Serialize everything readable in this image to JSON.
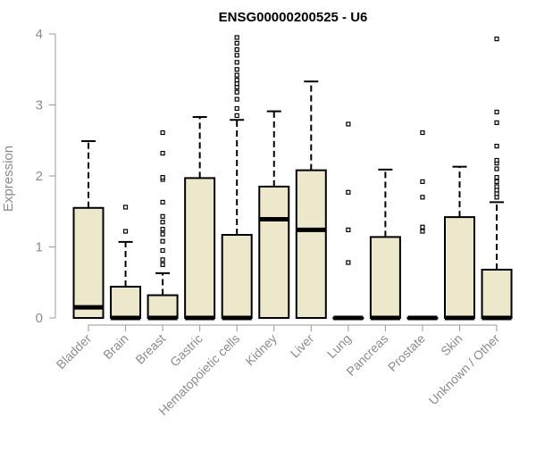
{
  "chart_data": {
    "type": "boxplot",
    "title": "ENSG00000200525 - U6",
    "xlabel": "",
    "ylabel": "Expression",
    "ylim": [
      0,
      4
    ],
    "yticks": [
      "0",
      "1",
      "2",
      "3",
      "4"
    ],
    "grid": false,
    "legend": "none",
    "colors": {
      "box_fill": "#ede7cc",
      "box_stroke": "#000000",
      "axis": "#999999",
      "label": "#8c8c8c"
    },
    "categories": [
      "Bladder",
      "Brain",
      "Breast",
      "Gastric",
      "Hematopoietic cells",
      "Kidney",
      "Liver",
      "Lung",
      "Pancreas",
      "Prostate",
      "Skin",
      "Unknown / Other"
    ],
    "boxes": [
      {
        "q1": 0.0,
        "median": 0.15,
        "q3": 1.55,
        "whisker_low": 0.0,
        "whisker_high": 2.49,
        "outliers": []
      },
      {
        "q1": 0.0,
        "median": 0.0,
        "q3": 0.44,
        "whisker_low": 0.0,
        "whisker_high": 1.07,
        "outliers": [
          1.22,
          1.56
        ]
      },
      {
        "q1": 0.0,
        "median": 0.0,
        "q3": 0.32,
        "whisker_low": 0.0,
        "whisker_high": 0.63,
        "outliers": [
          0.75,
          0.82,
          0.95,
          1.08,
          1.18,
          1.25,
          1.35,
          1.43,
          1.63,
          1.95,
          1.98,
          2.32,
          2.61
        ]
      },
      {
        "q1": 0.0,
        "median": 0.0,
        "q3": 1.97,
        "whisker_low": 0.0,
        "whisker_high": 2.83,
        "outliers": []
      },
      {
        "q1": 0.0,
        "median": 0.0,
        "q3": 1.17,
        "whisker_low": 0.0,
        "whisker_high": 2.79,
        "outliers": [
          2.85,
          2.95,
          3.08,
          3.18,
          3.25,
          3.3,
          3.35,
          3.42,
          3.5,
          3.6,
          3.7,
          3.78,
          3.87,
          3.95
        ]
      },
      {
        "q1": 0.0,
        "median": 1.39,
        "q3": 1.85,
        "whisker_low": 0.0,
        "whisker_high": 2.91,
        "outliers": []
      },
      {
        "q1": 0.0,
        "median": 1.24,
        "q3": 2.08,
        "whisker_low": 0.0,
        "whisker_high": 3.33,
        "outliers": []
      },
      {
        "q1": 0.0,
        "median": 0.0,
        "q3": 0.0,
        "whisker_low": 0.0,
        "whisker_high": 0.0,
        "outliers": [
          0.78,
          1.24,
          1.77,
          2.73
        ]
      },
      {
        "q1": 0.0,
        "median": 0.0,
        "q3": 1.14,
        "whisker_low": 0.0,
        "whisker_high": 2.09,
        "outliers": []
      },
      {
        "q1": 0.0,
        "median": 0.0,
        "q3": 0.0,
        "whisker_low": 0.0,
        "whisker_high": 0.0,
        "outliers": [
          1.22,
          1.28,
          1.7,
          1.92,
          2.61
        ]
      },
      {
        "q1": 0.0,
        "median": 0.0,
        "q3": 1.42,
        "whisker_low": 0.0,
        "whisker_high": 2.13,
        "outliers": []
      },
      {
        "q1": 0.0,
        "median": 0.0,
        "q3": 0.68,
        "whisker_low": 0.0,
        "whisker_high": 1.63,
        "outliers": [
          1.7,
          1.75,
          1.8,
          1.85,
          1.92,
          1.98,
          2.1,
          2.18,
          2.22,
          2.42,
          2.75,
          2.9,
          3.93
        ]
      }
    ]
  }
}
